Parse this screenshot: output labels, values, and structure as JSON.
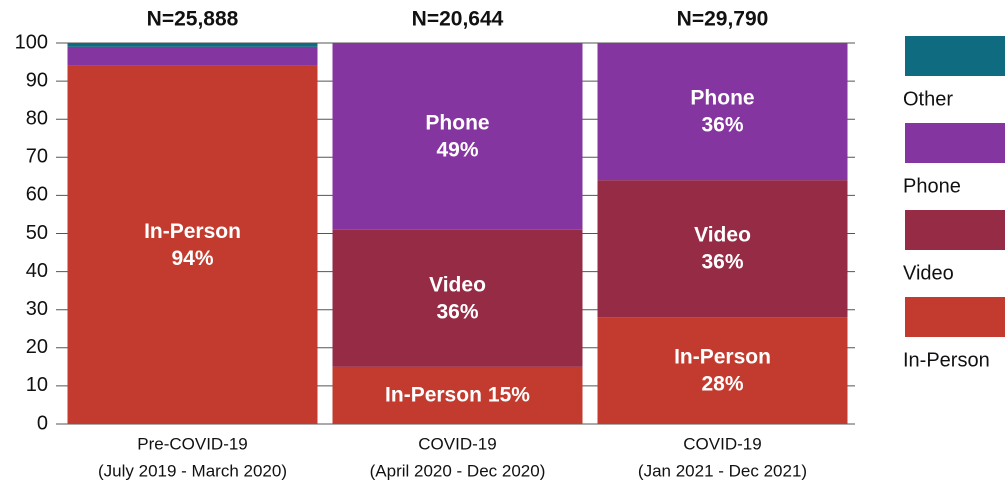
{
  "chart_data": {
    "type": "stacked_bar",
    "categories": [
      [
        "Pre-COVID-19",
        "(July 2019 -  March 2020)"
      ],
      [
        "COVID-19",
        "(April 2020 - Dec 2020)"
      ],
      [
        "COVID-19",
        "(Jan 2021 - Dec 2021)"
      ]
    ],
    "annotations": [
      "N=25,888",
      "N=20,644",
      "N=29,790"
    ],
    "series": [
      {
        "name": "In-Person",
        "color": "#c23b2e",
        "values": [
          94,
          15,
          28
        ],
        "value_labels": [
          "94%",
          "15%",
          "28%"
        ]
      },
      {
        "name": "Video",
        "color": "#962b45",
        "values": [
          0,
          36,
          36
        ],
        "value_labels": [
          null,
          "36%",
          "36%"
        ]
      },
      {
        "name": "Phone",
        "color": "#8535a0",
        "values": [
          5,
          49,
          36
        ],
        "value_labels": [
          null,
          "49%",
          "36%"
        ]
      },
      {
        "name": "Other",
        "color": "#0f6b80",
        "values": [
          1,
          0,
          0
        ],
        "value_labels": [
          null,
          null,
          null
        ]
      }
    ],
    "ylim": [
      0,
      100
    ],
    "yticks": [
      0,
      10,
      20,
      30,
      40,
      50,
      60,
      70,
      80,
      90,
      100
    ],
    "grid": true,
    "legend": "right"
  }
}
